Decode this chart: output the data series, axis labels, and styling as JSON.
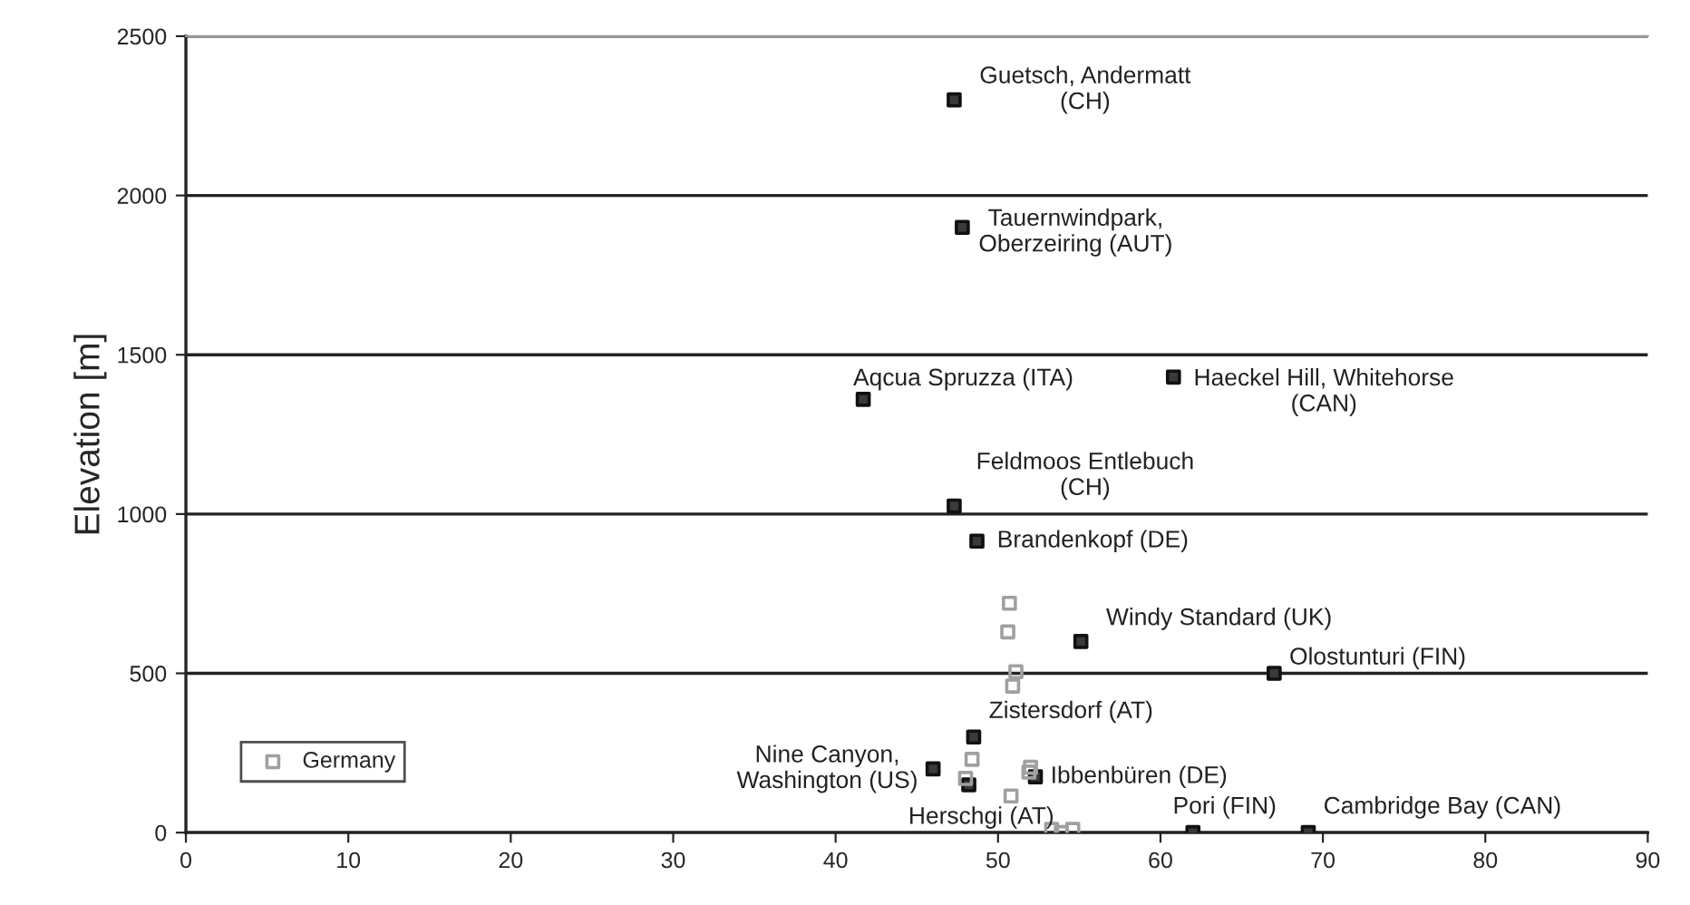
{
  "chart_data": {
    "type": "scatter",
    "ylabel": "Elevation [m]",
    "xlim": [
      0,
      90
    ],
    "xticks": [
      0,
      10,
      20,
      30,
      40,
      50,
      60,
      70,
      80,
      90
    ],
    "ylim": [
      0,
      2500
    ],
    "yticks": [
      0,
      500,
      1000,
      1500,
      2000,
      2500
    ],
    "grid": "y",
    "legend": "bottom left",
    "marker": "square",
    "series": [
      {
        "color": "#3a3a3a",
        "x": [
          47.3,
          47.8,
          41.7,
          60.8,
          47.3,
          48.7,
          55.1,
          67.0,
          48.5,
          46.0,
          48.2,
          52.3,
          62.0,
          69.1
        ],
        "values": [
          2300,
          1900,
          1360,
          1430,
          1025,
          915,
          600,
          500,
          300,
          200,
          150,
          175,
          0,
          0
        ]
      },
      {
        "name": "Germany",
        "color": "#a0a0a0",
        "x": [
          50.7,
          50.6,
          51.1,
          50.9,
          48.4,
          48.0,
          52.0,
          51.9,
          50.8,
          53.3,
          54.6,
          53.9
        ],
        "values": [
          720,
          630,
          505,
          460,
          230,
          170,
          205,
          190,
          115,
          10,
          10,
          0
        ]
      }
    ],
    "annotations": [
      {
        "text": "Guetsch, Andermatt\n(CH)",
        "x": 47.3,
        "y": 2300
      },
      {
        "text": "Tauernwindpark,\nOberzeiring (AUT)",
        "x": 47.8,
        "y": 1900
      },
      {
        "text": "Aqcua Spruzza (ITA)",
        "x": 41.7,
        "y": 1360
      },
      {
        "text": "Haeckel Hill, Whitehorse\n(CAN)",
        "x": 60.8,
        "y": 1430
      },
      {
        "text": "Feldmoos Entlebuch\n(CH)",
        "x": 47.3,
        "y": 1025
      },
      {
        "text": "Brandenkopf (DE)",
        "x": 48.7,
        "y": 915
      },
      {
        "text": "Windy Standard (UK)",
        "x": 55.1,
        "y": 600
      },
      {
        "text": "Olostunturi (FIN)",
        "x": 67.0,
        "y": 500
      },
      {
        "text": "Zistersdorf (AT)",
        "x": 48.5,
        "y": 300
      },
      {
        "text": "Nine Canyon,\nWashington (US)",
        "x": 46.0,
        "y": 200
      },
      {
        "text": "Herschgi (AT)",
        "x": 48.2,
        "y": 150
      },
      {
        "text": "Ibbenbüren (DE)",
        "x": 52.3,
        "y": 175
      },
      {
        "text": "Pori (FIN)",
        "x": 62.0,
        "y": 0
      },
      {
        "text": "Cambridge Bay (CAN)",
        "x": 69.1,
        "y": 0
      }
    ]
  }
}
